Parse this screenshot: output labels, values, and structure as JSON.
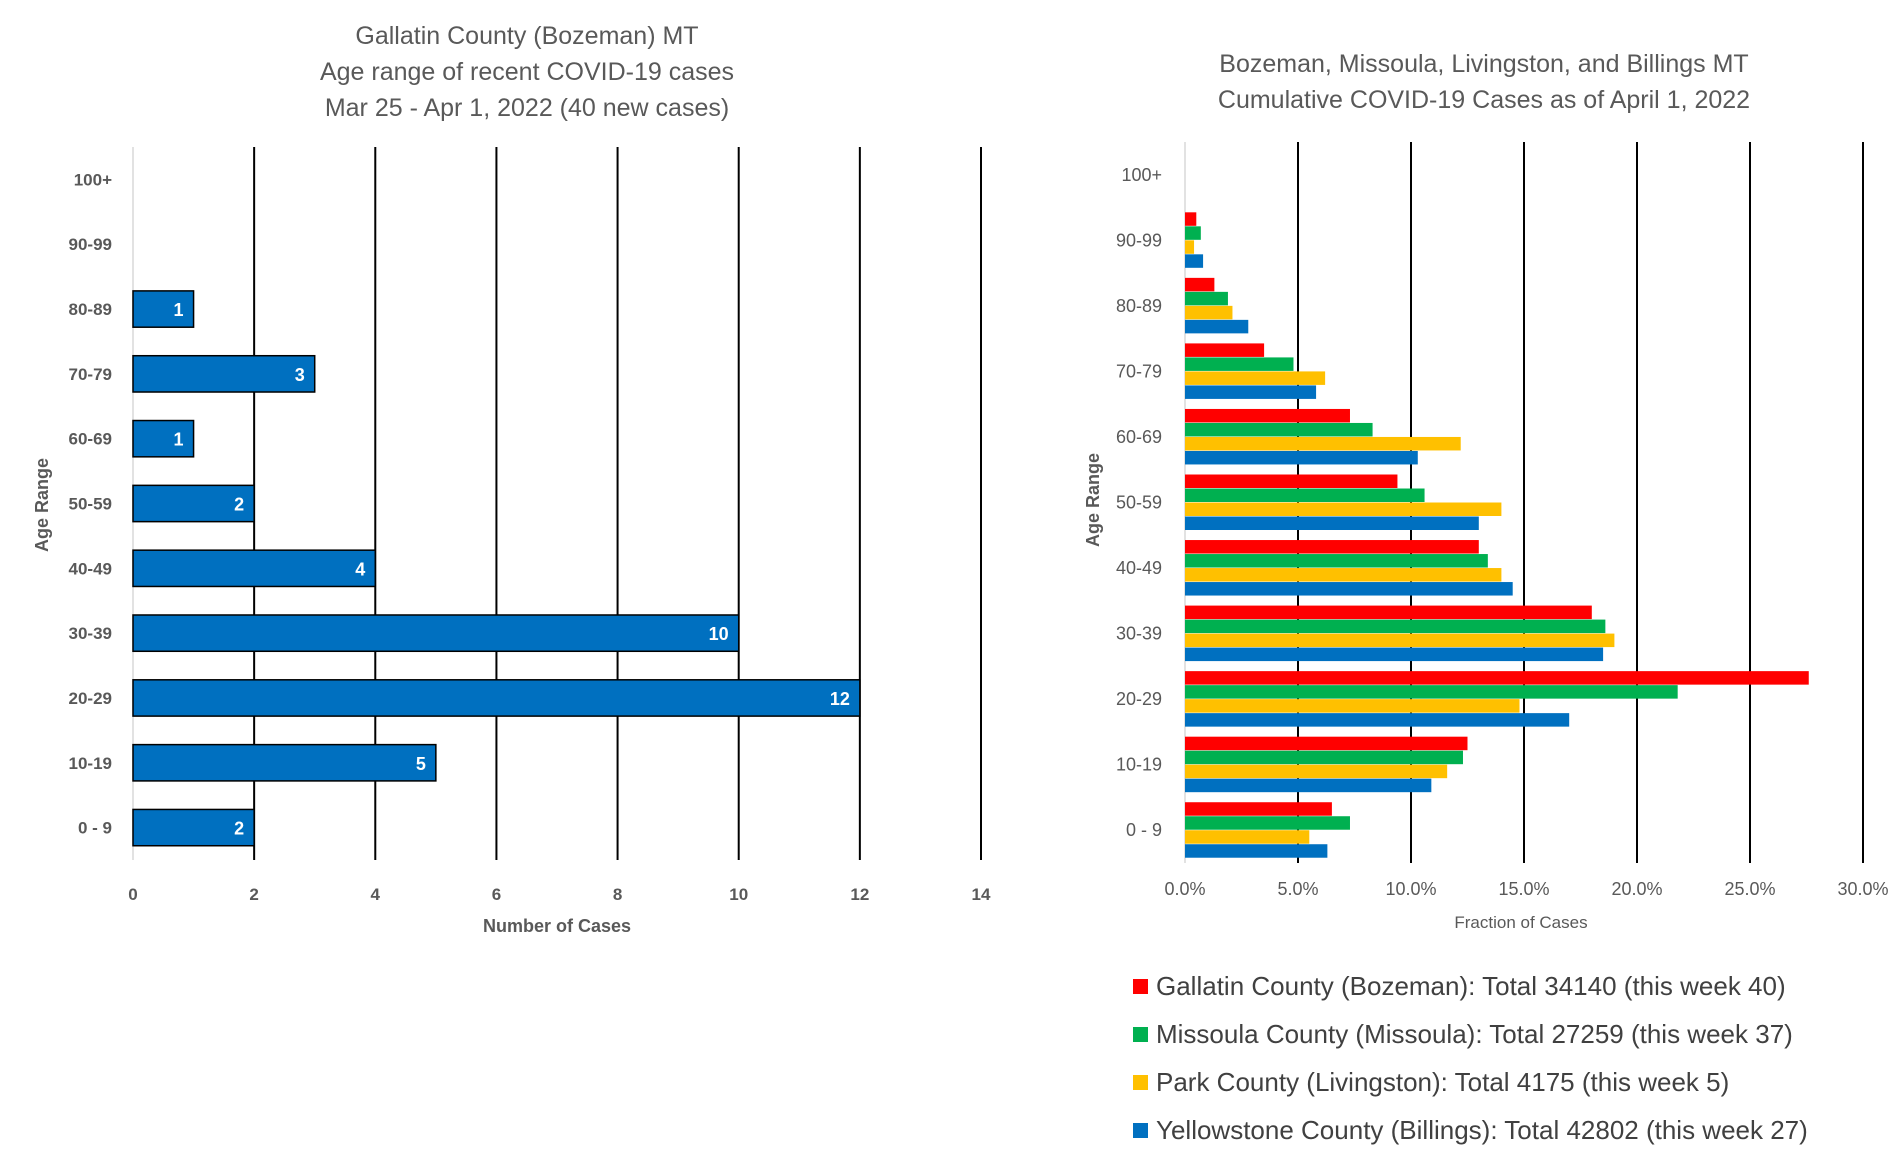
{
  "chart_data": [
    {
      "type": "bar",
      "orientation": "horizontal",
      "title_lines": [
        "Gallatin County (Bozeman) MT",
        "Age range of recent COVID-19 cases",
        "Mar 25 - Apr 1, 2022 (40 new cases)"
      ],
      "categories": [
        "0 - 9",
        "10-19",
        "20-29",
        "30-39",
        "40-49",
        "50-59",
        "60-69",
        "70-79",
        "80-89",
        "90-99",
        "100+"
      ],
      "values": [
        2,
        5,
        12,
        10,
        4,
        2,
        1,
        3,
        1,
        0,
        0
      ],
      "xlabel": "Number of Cases",
      "ylabel": "Age Range",
      "xlim": [
        0,
        14
      ],
      "xticks": [
        "0",
        "2",
        "4",
        "6",
        "8",
        "10",
        "12",
        "14"
      ],
      "grid": "vertical",
      "bar_color": "#0070C0",
      "data_labels": true
    },
    {
      "type": "bar",
      "orientation": "horizontal",
      "title_lines": [
        "Bozeman, Missoula, Livingston, and Billings MT",
        "Cumulative COVID-19 Cases as of April 1, 2022"
      ],
      "categories": [
        "0 - 9",
        "10-19",
        "20-29",
        "30-39",
        "40-49",
        "50-59",
        "60-69",
        "70-79",
        "80-89",
        "90-99",
        "100+"
      ],
      "series": [
        {
          "name": "Gallatin County (Bozeman): Total 34140 (this week 40)",
          "color": "#FF0000",
          "values": [
            0.065,
            0.125,
            0.276,
            0.18,
            0.13,
            0.094,
            0.073,
            0.035,
            0.013,
            0.005,
            0.0
          ]
        },
        {
          "name": "Missoula County (Missoula): Total 27259 (this week 37)",
          "color": "#00B050",
          "values": [
            0.073,
            0.123,
            0.218,
            0.186,
            0.134,
            0.106,
            0.083,
            0.048,
            0.019,
            0.007,
            0.0
          ]
        },
        {
          "name": "Park County (Livingston): Total 4175 (this week 5)",
          "color": "#FFC000",
          "values": [
            0.055,
            0.116,
            0.148,
            0.19,
            0.14,
            0.14,
            0.122,
            0.062,
            0.021,
            0.004,
            0.0
          ]
        },
        {
          "name": "Yellowstone County (Billings): Total 42802 (this week 27)",
          "color": "#0070C0",
          "values": [
            0.063,
            0.109,
            0.17,
            0.185,
            0.145,
            0.13,
            0.103,
            0.058,
            0.028,
            0.008,
            0.0
          ]
        }
      ],
      "xlabel": "Fraction of Cases",
      "ylabel": "Age Range",
      "xlim": [
        0,
        0.3
      ],
      "xticks": [
        "0.0%",
        "5.0%",
        "10.0%",
        "15.0%",
        "20.0%",
        "25.0%",
        "30.0%"
      ],
      "grid": "vertical",
      "legend_position": "bottom"
    }
  ]
}
